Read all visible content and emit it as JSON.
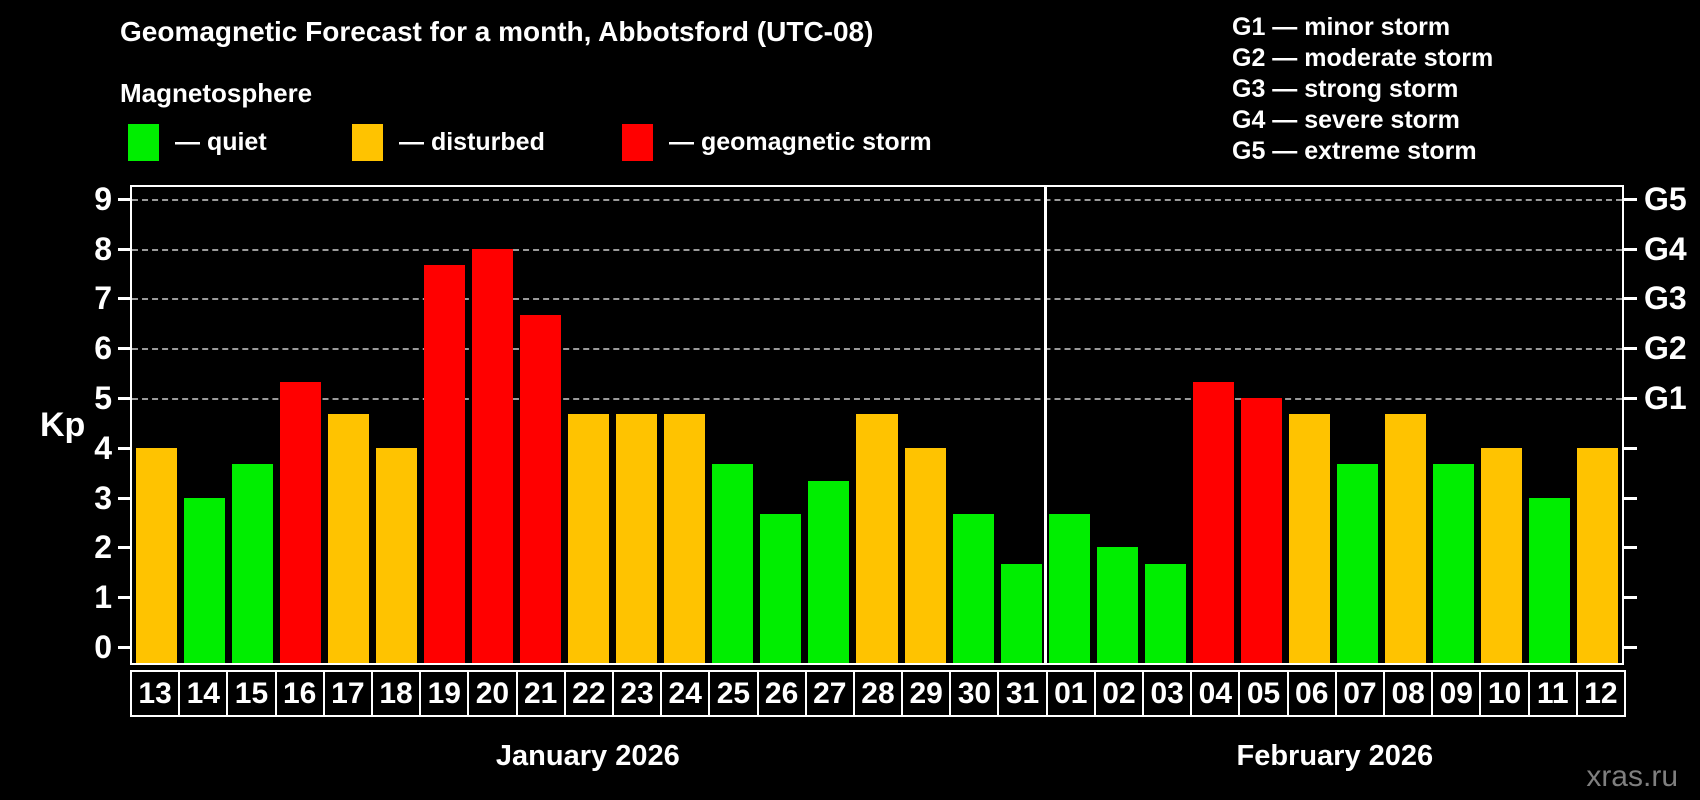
{
  "header": {
    "title": "Geomagnetic Forecast for a month, Abbotsford (UTC-08)",
    "subtitle": "Magnetosphere"
  },
  "magnetosphere_legend": [
    {
      "id": "quiet",
      "label": "— quiet",
      "color": "#00ee00"
    },
    {
      "id": "disturbed",
      "label": "— disturbed",
      "color": "#ffc300"
    },
    {
      "id": "storm",
      "label": "— geomagnetic storm",
      "color": "#ff0000"
    }
  ],
  "storm_scale_legend": [
    "G1 — minor storm",
    "G2 — moderate storm",
    "G3 — strong storm",
    "G4 — severe storm",
    "G5 — extreme storm"
  ],
  "watermark": "xras.ru",
  "chart_data": {
    "type": "bar",
    "title": "Geomagnetic Forecast for a month, Abbotsford (UTC-08)",
    "ylabel": "Kp",
    "ylim": [
      0,
      9
    ],
    "yticks": [
      0,
      1,
      2,
      3,
      4,
      5,
      6,
      7,
      8,
      9
    ],
    "grid": "dashed horizontal lines at Kp 5-9 only",
    "gridlines_at_kp": [
      5,
      6,
      7,
      8,
      9
    ],
    "right_axis_labels": [
      {
        "kp": 5,
        "label": "G1"
      },
      {
        "kp": 6,
        "label": "G2"
      },
      {
        "kp": 7,
        "label": "G3"
      },
      {
        "kp": 8,
        "label": "G4"
      },
      {
        "kp": 9,
        "label": "G5"
      }
    ],
    "status_colors": {
      "quiet": "#00ee00",
      "disturbed": "#ffc300",
      "storm": "#ff0000"
    },
    "months": [
      {
        "label": "January 2026",
        "num_days": 19
      },
      {
        "label": "February 2026",
        "num_days": 12
      }
    ],
    "series": [
      {
        "day": "13",
        "kp": 4.0,
        "status": "disturbed"
      },
      {
        "day": "14",
        "kp": 3.0,
        "status": "quiet"
      },
      {
        "day": "15",
        "kp": 3.67,
        "status": "quiet"
      },
      {
        "day": "16",
        "kp": 5.33,
        "status": "storm"
      },
      {
        "day": "17",
        "kp": 4.67,
        "status": "disturbed"
      },
      {
        "day": "18",
        "kp": 4.0,
        "status": "disturbed"
      },
      {
        "day": "19",
        "kp": 7.67,
        "status": "storm"
      },
      {
        "day": "20",
        "kp": 8.0,
        "status": "storm"
      },
      {
        "day": "21",
        "kp": 6.67,
        "status": "storm"
      },
      {
        "day": "22",
        "kp": 4.67,
        "status": "disturbed"
      },
      {
        "day": "23",
        "kp": 4.67,
        "status": "disturbed"
      },
      {
        "day": "24",
        "kp": 4.67,
        "status": "disturbed"
      },
      {
        "day": "25",
        "kp": 3.67,
        "status": "quiet"
      },
      {
        "day": "26",
        "kp": 2.67,
        "status": "quiet"
      },
      {
        "day": "27",
        "kp": 3.33,
        "status": "quiet"
      },
      {
        "day": "28",
        "kp": 4.67,
        "status": "disturbed"
      },
      {
        "day": "29",
        "kp": 4.0,
        "status": "disturbed"
      },
      {
        "day": "30",
        "kp": 2.67,
        "status": "quiet"
      },
      {
        "day": "31",
        "kp": 1.67,
        "status": "quiet"
      },
      {
        "day": "01",
        "kp": 2.67,
        "status": "quiet"
      },
      {
        "day": "02",
        "kp": 2.0,
        "status": "quiet"
      },
      {
        "day": "03",
        "kp": 1.67,
        "status": "quiet"
      },
      {
        "day": "04",
        "kp": 5.33,
        "status": "storm"
      },
      {
        "day": "05",
        "kp": 5.0,
        "status": "storm"
      },
      {
        "day": "06",
        "kp": 4.67,
        "status": "disturbed"
      },
      {
        "day": "07",
        "kp": 3.67,
        "status": "quiet"
      },
      {
        "day": "08",
        "kp": 4.67,
        "status": "disturbed"
      },
      {
        "day": "09",
        "kp": 3.67,
        "status": "quiet"
      },
      {
        "day": "10",
        "kp": 4.0,
        "status": "disturbed"
      },
      {
        "day": "11",
        "kp": 3.0,
        "status": "quiet"
      },
      {
        "day": "12",
        "kp": 4.0,
        "status": "disturbed"
      }
    ]
  }
}
